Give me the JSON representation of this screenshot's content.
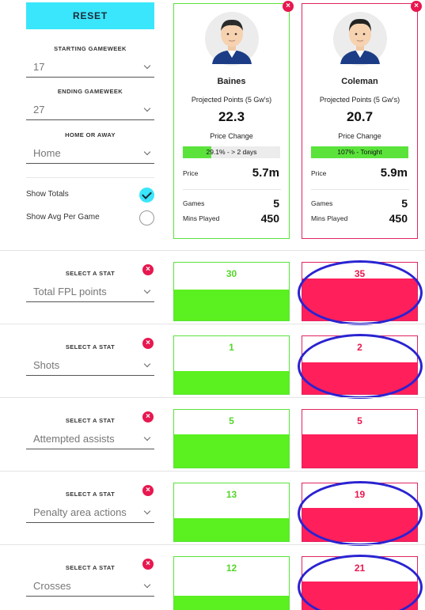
{
  "controls": {
    "reset_label": "RESET",
    "starting_gameweek": {
      "label": "STARTING GAMEWEEK",
      "value": "17"
    },
    "ending_gameweek": {
      "label": "ENDING GAMEWEEK",
      "value": "27"
    },
    "home_or_away": {
      "label": "HOME OR AWAY",
      "value": "Home"
    },
    "show_totals": {
      "label": "Show Totals",
      "checked": true
    },
    "show_avg": {
      "label": "Show Avg Per Game",
      "checked": false
    }
  },
  "players": [
    {
      "name": "Baines",
      "projected_label": "Projected Points (5 Gw's)",
      "projected_value": "22.3",
      "price_change_label": "Price Change",
      "price_change_text": "29.1% - > 2 days",
      "price_change_pct": 29.1,
      "price_label": "Price",
      "price_value": "5.7m",
      "games_label": "Games",
      "games_value": "5",
      "mins_label": "Mins Played",
      "mins_value": "450",
      "color": "#5be33c"
    },
    {
      "name": "Coleman",
      "projected_label": "Projected Points (5 Gw's)",
      "projected_value": "20.7",
      "price_change_label": "Price Change",
      "price_change_text": "107% - Tonight",
      "price_change_pct": 100,
      "price_label": "Price",
      "price_value": "5.9m",
      "games_label": "Games",
      "games_value": "5",
      "mins_label": "Mins Played",
      "mins_value": "450",
      "color": "#e02560"
    }
  ],
  "stats": [
    {
      "label": "SELECT A STAT",
      "stat": "Total FPL points",
      "p1": "30",
      "p2": "35",
      "p1_fill": 0.53,
      "p2_fill": 0.73,
      "p2_circled": true
    },
    {
      "label": "SELECT A STAT",
      "stat": "Shots",
      "p1": "1",
      "p2": "2",
      "p1_fill": 0.4,
      "p2_fill": 0.55,
      "p2_circled": true
    },
    {
      "label": "SELECT A STAT",
      "stat": "Attempted assists",
      "p1": "5",
      "p2": "5",
      "p1_fill": 0.58,
      "p2_fill": 0.58,
      "p2_circled": false
    },
    {
      "label": "SELECT A STAT",
      "stat": "Penalty area actions",
      "p1": "13",
      "p2": "19",
      "p1_fill": 0.4,
      "p2_fill": 0.58,
      "p2_circled": true
    },
    {
      "label": "SELECT A STAT",
      "stat": "Crosses",
      "p1": "12",
      "p2": "21",
      "p1_fill": 0.33,
      "p2_fill": 0.57,
      "p2_circled": true
    }
  ],
  "icons": {
    "close": "close-icon",
    "chevron": "chevron-down-icon",
    "check": "check-icon",
    "avatar": "player-avatar-icon"
  },
  "annotation_color": "#2a23d1"
}
